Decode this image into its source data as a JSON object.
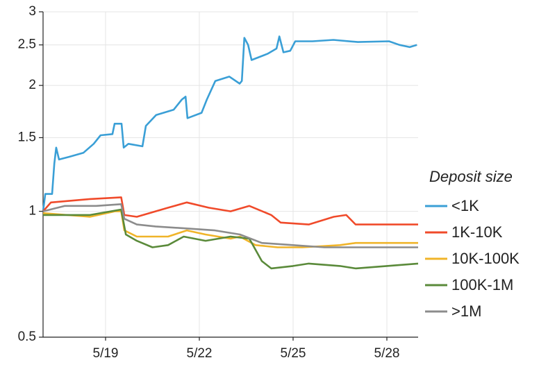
{
  "chart_data": {
    "type": "line",
    "log_y": true,
    "grid": true,
    "legend_position": "right",
    "legend_title": "Deposit size",
    "xlim": [
      17,
      29
    ],
    "xticks": [
      {
        "value": 19,
        "label": "5/19"
      },
      {
        "value": 22,
        "label": "5/22"
      },
      {
        "value": 25,
        "label": "5/25"
      },
      {
        "value": 28,
        "label": "5/28"
      }
    ],
    "ylim": [
      0.5,
      3
    ],
    "yticks": [
      0.5,
      1,
      1.5,
      2,
      2.5,
      3
    ],
    "series": [
      {
        "name": "<1K",
        "color": "#3a9fd6",
        "x": [
          17.0,
          17.07,
          17.29,
          17.36,
          17.42,
          17.51,
          17.84,
          18.29,
          18.62,
          18.84,
          19.22,
          19.29,
          19.51,
          19.58,
          19.73,
          20.18,
          20.29,
          20.62,
          21.18,
          21.44,
          21.56,
          21.62,
          22.07,
          22.24,
          22.51,
          22.96,
          23.29,
          23.36,
          23.44,
          23.56,
          23.67,
          24.18,
          24.47,
          24.56,
          24.69,
          24.91,
          25.07,
          25.62,
          26.29,
          27.07,
          28.07,
          28.4,
          28.73,
          28.96
        ],
        "values": [
          1.0,
          1.1,
          1.1,
          1.3,
          1.42,
          1.33,
          1.35,
          1.38,
          1.45,
          1.52,
          1.53,
          1.62,
          1.62,
          1.42,
          1.45,
          1.43,
          1.6,
          1.7,
          1.75,
          1.85,
          1.88,
          1.67,
          1.72,
          1.85,
          2.05,
          2.1,
          2.02,
          2.05,
          2.6,
          2.5,
          2.3,
          2.38,
          2.45,
          2.62,
          2.4,
          2.42,
          2.55,
          2.55,
          2.57,
          2.54,
          2.55,
          2.5,
          2.47,
          2.5
        ]
      },
      {
        "name": "1K-10K",
        "color": "#f04a2a",
        "x": [
          17.0,
          17.25,
          18.5,
          19.5,
          19.6,
          20.0,
          21.0,
          21.6,
          22.3,
          23.0,
          23.6,
          24.3,
          24.6,
          25.5,
          26.3,
          26.7,
          27.0,
          29.0
        ],
        "values": [
          1.0,
          1.05,
          1.07,
          1.08,
          0.98,
          0.97,
          1.02,
          1.05,
          1.02,
          1.0,
          1.03,
          0.98,
          0.94,
          0.93,
          0.97,
          0.98,
          0.93,
          0.93
        ]
      },
      {
        "name": "10K-100K",
        "color": "#f0b429",
        "x": [
          17.0,
          18.5,
          19.3,
          19.5,
          19.6,
          20.0,
          21.0,
          21.6,
          22.2,
          23.0,
          23.3,
          23.8,
          24.5,
          25.3,
          26.5,
          27.0,
          29.0
        ],
        "values": [
          0.99,
          0.97,
          1.0,
          1.0,
          0.9,
          0.87,
          0.87,
          0.9,
          0.88,
          0.86,
          0.87,
          0.83,
          0.82,
          0.82,
          0.83,
          0.84,
          0.84
        ]
      },
      {
        "name": "100K-1M",
        "color": "#5a8a3a",
        "x": [
          17.0,
          18.5,
          19.5,
          19.65,
          20.0,
          20.5,
          21.0,
          21.5,
          22.2,
          23.0,
          23.6,
          24.0,
          24.3,
          25.0,
          25.5,
          26.5,
          27.0,
          28.0,
          29.0
        ],
        "values": [
          0.98,
          0.98,
          1.01,
          0.88,
          0.85,
          0.82,
          0.83,
          0.87,
          0.85,
          0.87,
          0.86,
          0.76,
          0.73,
          0.74,
          0.75,
          0.74,
          0.73,
          0.74,
          0.75
        ]
      },
      {
        "name": ">1M",
        "color": "#8c8c8c",
        "x": [
          17.0,
          17.7,
          18.7,
          19.5,
          19.6,
          20.0,
          20.6,
          21.6,
          22.5,
          23.3,
          24.0,
          25.0,
          26.0,
          27.0,
          29.0
        ],
        "values": [
          1.0,
          1.03,
          1.03,
          1.04,
          0.96,
          0.93,
          0.92,
          0.91,
          0.9,
          0.88,
          0.84,
          0.83,
          0.82,
          0.82,
          0.82
        ]
      }
    ]
  }
}
